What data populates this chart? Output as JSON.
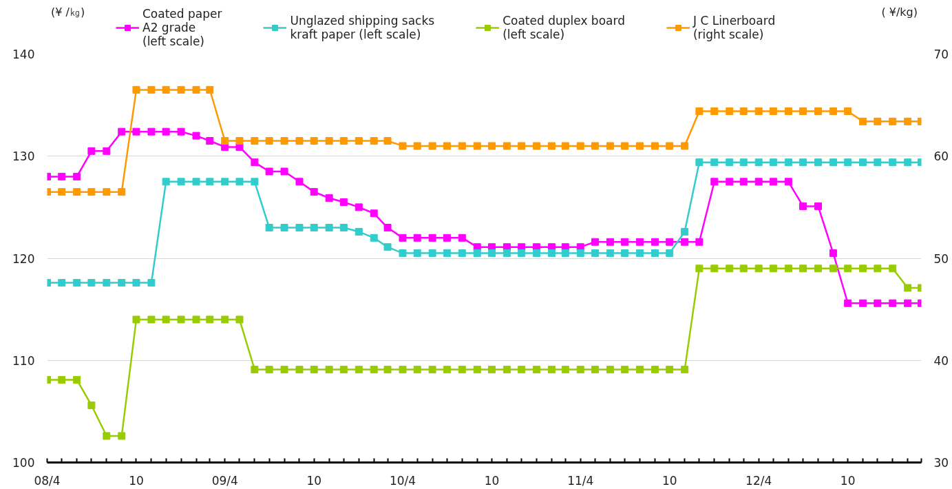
{
  "chart_data": {
    "type": "line",
    "ylabel": "(¥ /㎏)",
    "y2label": "( ¥/kg)",
    "x": [
      "2008-04",
      "2008-05",
      "2008-06",
      "2008-07",
      "2008-08",
      "2008-09",
      "2008-10",
      "2008-11",
      "2008-12",
      "2009-01",
      "2009-02",
      "2009-03",
      "2009-04",
      "2009-05",
      "2009-06",
      "2009-07",
      "2009-08",
      "2009-09",
      "2009-10",
      "2009-11",
      "2009-12",
      "2010-01",
      "2010-02",
      "2010-03",
      "2010-04",
      "2010-05",
      "2010-06",
      "2010-07",
      "2010-08",
      "2010-09",
      "2010-10",
      "2010-11",
      "2010-12",
      "2011-01",
      "2011-02",
      "2011-03",
      "2011-04",
      "2011-05",
      "2011-06",
      "2011-07",
      "2011-08",
      "2011-09",
      "2011-10",
      "2011-11",
      "2011-12",
      "2012-01",
      "2012-02",
      "2012-03",
      "2012-04",
      "2012-05",
      "2012-06",
      "2012-07",
      "2012-08",
      "2012-09",
      "2012-10",
      "2012-11",
      "2012-12",
      "2013-01",
      "2013-02",
      "2013-03"
    ],
    "series": [
      {
        "name": "Coated paper\nA2 grade\n(left scale)",
        "color": "#ff00ff",
        "values": [
          128.0,
          128.0,
          128.0,
          130.5,
          130.5,
          132.4,
          132.4,
          132.4,
          132.4,
          132.4,
          132.0,
          131.5,
          130.9,
          130.9,
          129.4,
          128.5,
          128.5,
          127.5,
          126.5,
          125.9,
          125.5,
          125.0,
          124.4,
          123.0,
          122.0,
          122.0,
          122.0,
          122.0,
          122.0,
          121.1,
          121.1,
          121.1,
          121.1,
          121.1,
          121.1,
          121.1,
          121.1,
          121.6,
          121.6,
          121.6,
          121.6,
          121.6,
          121.6,
          121.6,
          121.6,
          127.5,
          127.5,
          127.5,
          127.5,
          127.5,
          127.5,
          125.1,
          125.1,
          120.5,
          115.6,
          115.6,
          115.6,
          115.6,
          115.6,
          115.6
        ]
      },
      {
        "name": "Unglazed shipping sacks\nkraft paper (left scale)",
        "color": "#33cccc",
        "values": [
          117.6,
          117.6,
          117.6,
          117.6,
          117.6,
          117.6,
          117.6,
          117.6,
          127.5,
          127.5,
          127.5,
          127.5,
          127.5,
          127.5,
          127.5,
          123.0,
          123.0,
          123.0,
          123.0,
          123.0,
          123.0,
          122.6,
          122.0,
          121.1,
          120.5,
          120.5,
          120.5,
          120.5,
          120.5,
          120.5,
          120.5,
          120.5,
          120.5,
          120.5,
          120.5,
          120.5,
          120.5,
          120.5,
          120.5,
          120.5,
          120.5,
          120.5,
          120.5,
          122.6,
          129.4,
          129.4,
          129.4,
          129.4,
          129.4,
          129.4,
          129.4,
          129.4,
          129.4,
          129.4,
          129.4,
          129.4,
          129.4,
          129.4,
          129.4,
          129.4
        ]
      },
      {
        "name": "Coated duplex board\n(left scale)",
        "color": "#99cc00",
        "values": [
          108.1,
          108.1,
          108.1,
          105.6,
          102.6,
          102.6,
          114.0,
          114.0,
          114.0,
          114.0,
          114.0,
          114.0,
          114.0,
          114.0,
          109.1,
          109.1,
          109.1,
          109.1,
          109.1,
          109.1,
          109.1,
          109.1,
          109.1,
          109.1,
          109.1,
          109.1,
          109.1,
          109.1,
          109.1,
          109.1,
          109.1,
          109.1,
          109.1,
          109.1,
          109.1,
          109.1,
          109.1,
          109.1,
          109.1,
          109.1,
          109.1,
          109.1,
          109.1,
          109.1,
          119.0,
          119.0,
          119.0,
          119.0,
          119.0,
          119.0,
          119.0,
          119.0,
          119.0,
          119.0,
          119.0,
          119.0,
          119.0,
          119.0,
          117.1,
          117.1
        ]
      },
      {
        "name": "J C Linerboard\n(right scale)",
        "color": "#ff9900",
        "axis": "y2",
        "values": [
          56.5,
          56.5,
          56.5,
          56.5,
          56.5,
          56.5,
          66.5,
          66.5,
          66.5,
          66.5,
          66.5,
          66.5,
          61.5,
          61.5,
          61.5,
          61.5,
          61.5,
          61.5,
          61.5,
          61.5,
          61.5,
          61.5,
          61.5,
          61.5,
          61.0,
          61.0,
          61.0,
          61.0,
          61.0,
          61.0,
          61.0,
          61.0,
          61.0,
          61.0,
          61.0,
          61.0,
          61.0,
          61.0,
          61.0,
          61.0,
          61.0,
          61.0,
          61.0,
          61.0,
          64.4,
          64.4,
          64.4,
          64.4,
          64.4,
          64.4,
          64.4,
          64.4,
          64.4,
          64.4,
          64.4,
          63.4,
          63.4,
          63.4,
          63.4,
          63.4
        ]
      }
    ],
    "xlim": [
      "2008-04",
      "2013-03"
    ],
    "xticks": [
      {
        "value": "2008-04",
        "label": "08/4"
      },
      {
        "value": "2008-05",
        "label": null
      },
      {
        "value": "2008-06",
        "label": null
      },
      {
        "value": "2008-07",
        "label": null
      },
      {
        "value": "2008-08",
        "label": null
      },
      {
        "value": "2008-09",
        "label": null
      },
      {
        "value": "2008-10",
        "label": "10"
      },
      {
        "value": "2008-11",
        "label": null
      },
      {
        "value": "2008-12",
        "label": null
      },
      {
        "value": "2009-01",
        "label": null
      },
      {
        "value": "2009-02",
        "label": null
      },
      {
        "value": "2009-03",
        "label": null
      },
      {
        "value": "2009-04",
        "label": "09/4"
      },
      {
        "value": "2009-05",
        "label": null
      },
      {
        "value": "2009-06",
        "label": null
      },
      {
        "value": "2009-07",
        "label": null
      },
      {
        "value": "2009-08",
        "label": null
      },
      {
        "value": "2009-09",
        "label": null
      },
      {
        "value": "2009-10",
        "label": "10"
      },
      {
        "value": "2009-11",
        "label": null
      },
      {
        "value": "2009-12",
        "label": null
      },
      {
        "value": "2010-01",
        "label": null
      },
      {
        "value": "2010-02",
        "label": null
      },
      {
        "value": "2010-03",
        "label": null
      },
      {
        "value": "2010-04",
        "label": "10/4"
      },
      {
        "value": "2010-05",
        "label": null
      },
      {
        "value": "2010-06",
        "label": null
      },
      {
        "value": "2010-07",
        "label": null
      },
      {
        "value": "2010-08",
        "label": null
      },
      {
        "value": "2010-09",
        "label": null
      },
      {
        "value": "2010-10",
        "label": "10"
      },
      {
        "value": "2010-11",
        "label": null
      },
      {
        "value": "2010-12",
        "label": null
      },
      {
        "value": "2011-01",
        "label": null
      },
      {
        "value": "2011-02",
        "label": null
      },
      {
        "value": "2011-03",
        "label": null
      },
      {
        "value": "2011-04",
        "label": "11/4"
      },
      {
        "value": "2011-05",
        "label": null
      },
      {
        "value": "2011-06",
        "label": null
      },
      {
        "value": "2011-07",
        "label": null
      },
      {
        "value": "2011-08",
        "label": null
      },
      {
        "value": "2011-09",
        "label": null
      },
      {
        "value": "2011-10",
        "label": "10"
      },
      {
        "value": "2011-11",
        "label": null
      },
      {
        "value": "2011-12",
        "label": null
      },
      {
        "value": "2012-01",
        "label": null
      },
      {
        "value": "2012-02",
        "label": null
      },
      {
        "value": "2012-03",
        "label": null
      },
      {
        "value": "2012-04",
        "label": "12/4"
      },
      {
        "value": "2012-05",
        "label": null
      },
      {
        "value": "2012-06",
        "label": null
      },
      {
        "value": "2012-07",
        "label": null
      },
      {
        "value": "2012-08",
        "label": null
      },
      {
        "value": "2012-09",
        "label": null
      },
      {
        "value": "2012-10",
        "label": "10"
      },
      {
        "value": "2012-11",
        "label": null
      },
      {
        "value": "2012-12",
        "label": null
      },
      {
        "value": "2013-01",
        "label": null
      },
      {
        "value": "2013-02",
        "label": null
      },
      {
        "value": "2013-03",
        "label": null
      }
    ],
    "ylim": [
      100,
      140
    ],
    "yticks": [
      100,
      110,
      120,
      130,
      140
    ],
    "y2lim": [
      30,
      70
    ],
    "y2ticks": [
      30,
      40,
      50,
      60,
      70
    ],
    "grid": "y",
    "legend": "top",
    "marker": "square",
    "line_style": "solid"
  }
}
